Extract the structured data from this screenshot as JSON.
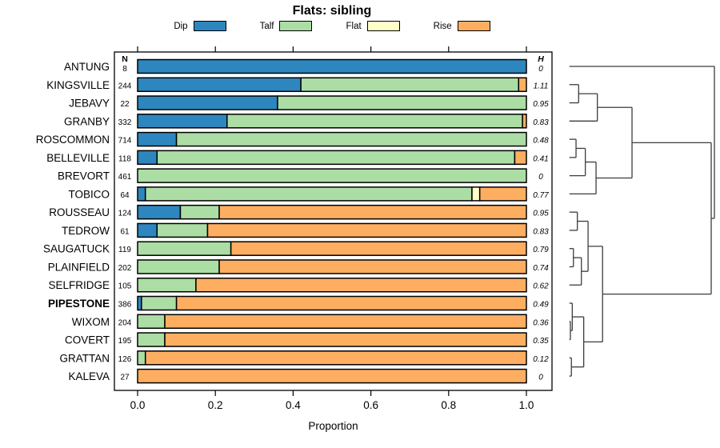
{
  "title": "Flats: sibling",
  "legend": {
    "items": [
      {
        "label": "Dip",
        "color": "#2E86BE"
      },
      {
        "label": "Talf",
        "color": "#ABDDA4"
      },
      {
        "label": "Flat",
        "color": "#FFFFC8"
      },
      {
        "label": "Rise",
        "color": "#FDAE61"
      }
    ]
  },
  "chart_data": {
    "type": "bar",
    "subtype": "stacked-horizontal",
    "title": "Flats: sibling",
    "xlabel": "Proportion",
    "xlim": [
      0,
      1
    ],
    "x_ticks": [
      "0.0",
      "0.2",
      "0.4",
      "0.6",
      "0.8",
      "1.0"
    ],
    "grid": false,
    "legend_position": "top",
    "series_names": [
      "Dip",
      "Talf",
      "Flat",
      "Rise"
    ],
    "colors": {
      "Dip": "#2E86BE",
      "Talf": "#ABDDA4",
      "Flat": "#FFFFC8",
      "Rise": "#FDAE61"
    },
    "n_header": "N",
    "h_header": "H",
    "rows": [
      {
        "name": "ANTUNG",
        "n": 8,
        "h": "0",
        "dip": 1.0,
        "talf": 0.0,
        "flat": 0.0,
        "rise": 0.0,
        "bold": false
      },
      {
        "name": "KINGSVILLE",
        "n": 244,
        "h": "1.11",
        "dip": 0.42,
        "talf": 0.56,
        "flat": 0.0,
        "rise": 0.02,
        "bold": false
      },
      {
        "name": "JEBAVY",
        "n": 22,
        "h": "0.95",
        "dip": 0.36,
        "talf": 0.64,
        "flat": 0.0,
        "rise": 0.0,
        "bold": false
      },
      {
        "name": "GRANBY",
        "n": 332,
        "h": "0.83",
        "dip": 0.23,
        "talf": 0.76,
        "flat": 0.0,
        "rise": 0.01,
        "bold": false
      },
      {
        "name": "ROSCOMMON",
        "n": 714,
        "h": "0.48",
        "dip": 0.1,
        "talf": 0.9,
        "flat": 0.0,
        "rise": 0.0,
        "bold": false
      },
      {
        "name": "BELLEVILLE",
        "n": 118,
        "h": "0.41",
        "dip": 0.05,
        "talf": 0.92,
        "flat": 0.0,
        "rise": 0.03,
        "bold": false
      },
      {
        "name": "BREVORT",
        "n": 461,
        "h": "0",
        "dip": 0.0,
        "talf": 1.0,
        "flat": 0.0,
        "rise": 0.0,
        "bold": false
      },
      {
        "name": "TOBICO",
        "n": 64,
        "h": "0.77",
        "dip": 0.02,
        "talf": 0.84,
        "flat": 0.02,
        "rise": 0.12,
        "bold": false
      },
      {
        "name": "ROUSSEAU",
        "n": 124,
        "h": "0.95",
        "dip": 0.11,
        "talf": 0.1,
        "flat": 0.0,
        "rise": 0.79,
        "bold": false
      },
      {
        "name": "TEDROW",
        "n": 61,
        "h": "0.83",
        "dip": 0.05,
        "talf": 0.13,
        "flat": 0.0,
        "rise": 0.82,
        "bold": false
      },
      {
        "name": "SAUGATUCK",
        "n": 119,
        "h": "0.79",
        "dip": 0.0,
        "talf": 0.24,
        "flat": 0.0,
        "rise": 0.76,
        "bold": false
      },
      {
        "name": "PLAINFIELD",
        "n": 202,
        "h": "0.74",
        "dip": 0.0,
        "talf": 0.21,
        "flat": 0.0,
        "rise": 0.79,
        "bold": false
      },
      {
        "name": "SELFRIDGE",
        "n": 105,
        "h": "0.62",
        "dip": 0.0,
        "talf": 0.15,
        "flat": 0.0,
        "rise": 0.85,
        "bold": false
      },
      {
        "name": "PIPESTONE",
        "n": 386,
        "h": "0.49",
        "dip": 0.01,
        "talf": 0.09,
        "flat": 0.0,
        "rise": 0.9,
        "bold": true
      },
      {
        "name": "WIXOM",
        "n": 204,
        "h": "0.36",
        "dip": 0.0,
        "talf": 0.07,
        "flat": 0.0,
        "rise": 0.93,
        "bold": false
      },
      {
        "name": "COVERT",
        "n": 195,
        "h": "0.35",
        "dip": 0.0,
        "talf": 0.07,
        "flat": 0.0,
        "rise": 0.93,
        "bold": false
      },
      {
        "name": "GRATTAN",
        "n": 126,
        "h": "0.12",
        "dip": 0.0,
        "talf": 0.02,
        "flat": 0.0,
        "rise": 0.98,
        "bold": false
      },
      {
        "name": "KALEVA",
        "n": 27,
        "h": "0",
        "dip": 0.0,
        "talf": 0.0,
        "flat": 0.0,
        "rise": 1.0,
        "bold": false
      }
    ],
    "dendrogram": {
      "h": 1.0,
      "children": [
        {
          "leaf": "ANTUNG"
        },
        {
          "h": 0.978,
          "children": [
            {
              "h": 0.432,
              "children": [
                {
                  "h": 0.193,
                  "children": [
                    {
                      "h": 0.064,
                      "children": [
                        {
                          "leaf": "KINGSVILLE"
                        },
                        {
                          "leaf": "JEBAVY"
                        }
                      ]
                    },
                    {
                      "leaf": "GRANBY"
                    }
                  ]
                },
                {
                  "h": 0.184,
                  "children": [
                    {
                      "h": 0.11,
                      "children": [
                        {
                          "h": 0.046,
                          "children": [
                            {
                              "leaf": "ROSCOMMON"
                            },
                            {
                              "leaf": "BELLEVILLE"
                            }
                          ]
                        },
                        {
                          "leaf": "BREVORT"
                        }
                      ]
                    },
                    {
                      "leaf": "TOBICO"
                    }
                  ]
                }
              ]
            },
            {
              "h": 0.229,
              "children": [
                {
                  "h": 0.129,
                  "children": [
                    {
                      "h": 0.055,
                      "children": [
                        {
                          "leaf": "ROUSSEAU"
                        },
                        {
                          "leaf": "TEDROW"
                        }
                      ]
                    },
                    {
                      "h": 0.083,
                      "children": [
                        {
                          "h": 0.028,
                          "children": [
                            {
                              "leaf": "SAUGATUCK"
                            },
                            {
                              "leaf": "PLAINFIELD"
                            }
                          ]
                        },
                        {
                          "leaf": "SELFRIDGE"
                        }
                      ]
                    }
                  ]
                },
                {
                  "h": 0.099,
                  "children": [
                    {
                      "h": 0.02,
                      "children": [
                        {
                          "leaf": "PIPESTONE"
                        },
                        {
                          "h": 0.007,
                          "children": [
                            {
                              "leaf": "WIXOM"
                            },
                            {
                              "leaf": "COVERT"
                            }
                          ]
                        }
                      ]
                    },
                    {
                      "h": 0.014,
                      "children": [
                        {
                          "leaf": "GRATTAN"
                        },
                        {
                          "leaf": "KALEVA"
                        }
                      ]
                    }
                  ]
                }
              ]
            }
          ]
        }
      ]
    }
  }
}
